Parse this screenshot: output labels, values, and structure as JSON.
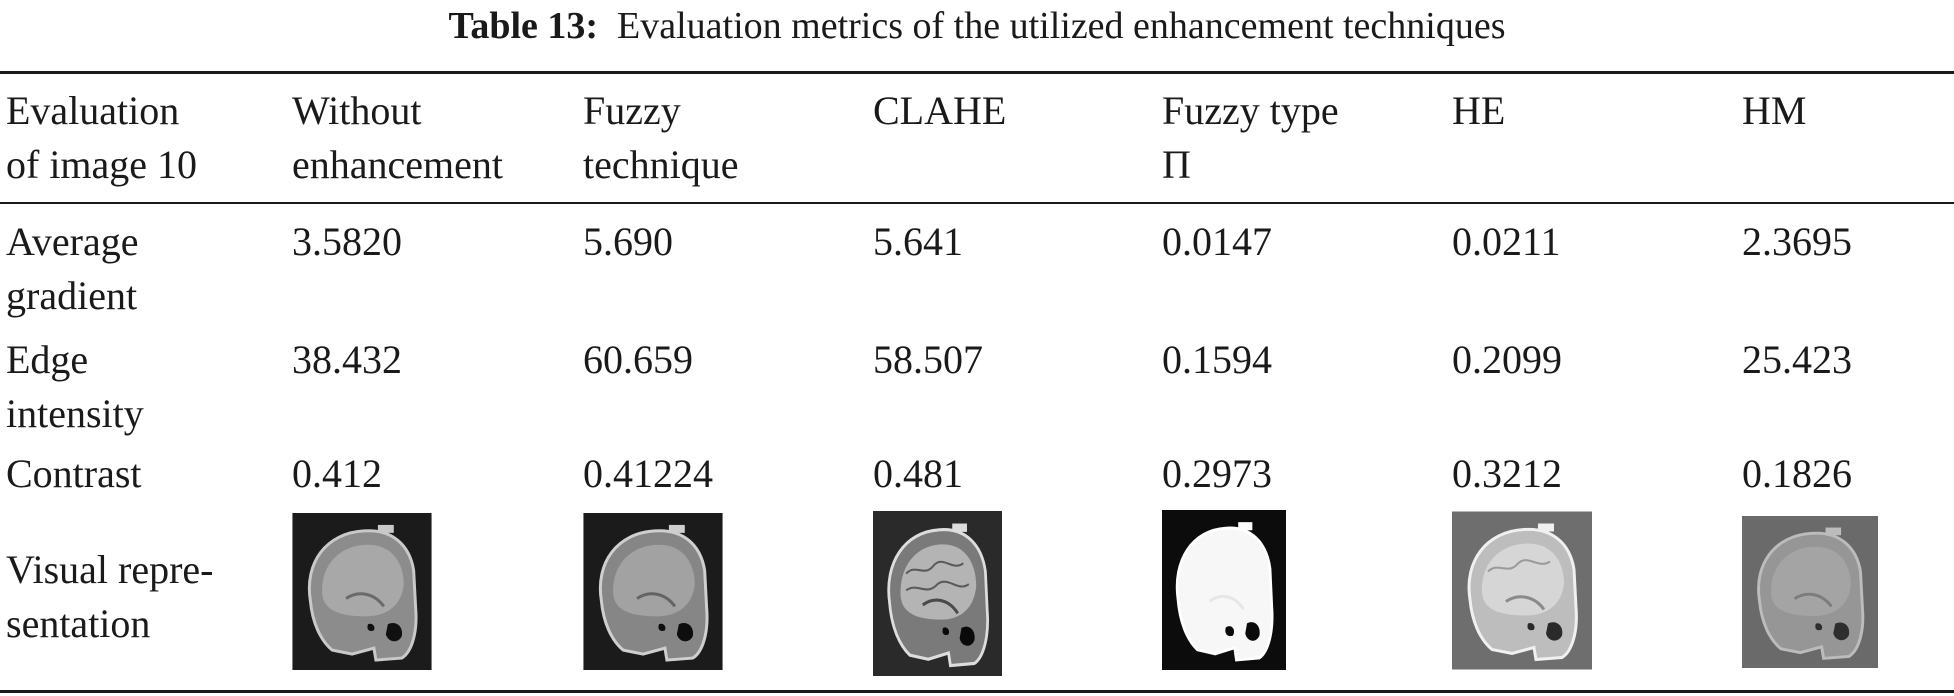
{
  "caption": {
    "label": "Table 13:",
    "text": "Evaluation metrics of the utilized enhancement techniques"
  },
  "table": {
    "columns": [
      "Evaluation\nof image 10",
      "Without\nenhancement",
      "Fuzzy\ntechnique",
      "CLAHE",
      "Fuzzy type\nΠ",
      "HE",
      "HM"
    ],
    "rows": [
      {
        "metric": "Average\ngradient",
        "values": [
          "3.5820",
          "5.690",
          "5.641",
          "0.0147",
          "0.0211",
          "2.3695"
        ]
      },
      {
        "metric": "Edge\nintensity",
        "values": [
          "38.432",
          "60.659",
          "58.507",
          "0.1594",
          "0.2099",
          "25.423"
        ]
      },
      {
        "metric": "Contrast",
        "values": [
          "0.412",
          "0.41224",
          "0.481",
          "0.2973",
          "0.3212",
          "0.1826"
        ]
      }
    ],
    "visual_row": {
      "label": "Visual repre-\nsentation"
    }
  }
}
